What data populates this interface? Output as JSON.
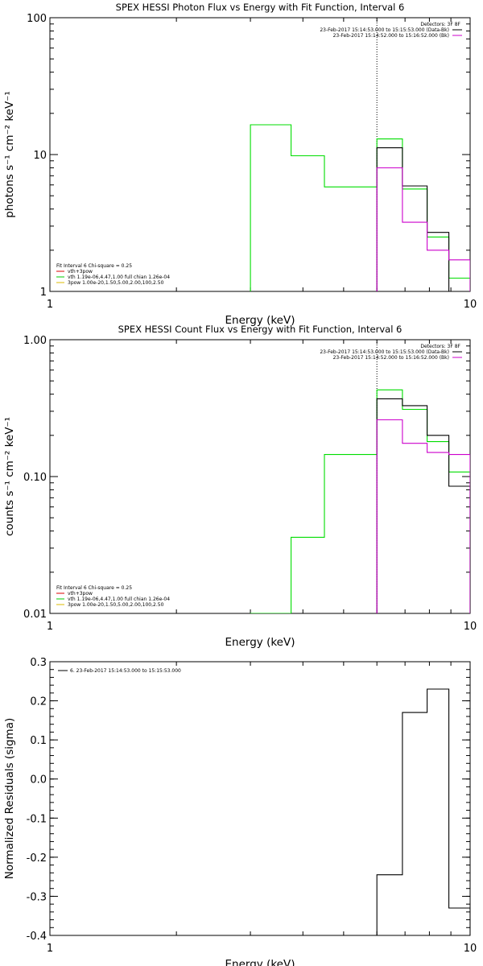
{
  "chart_data": [
    {
      "type": "line",
      "title": "SPEX HESSI Photon Flux vs Energy with Fit Function, Interval 6",
      "xlabel": "Energy (keV)",
      "ylabel": "photons s⁻¹ cm⁻² keV⁻¹",
      "xscale": "log",
      "yscale": "log",
      "xlim": [
        1,
        10
      ],
      "ylim": [
        1,
        100
      ],
      "xticks": [
        {
          "value": 1,
          "label": "1"
        },
        {
          "value": 10,
          "label": "10"
        }
      ],
      "yticks": [
        {
          "value": 1,
          "label": "1"
        },
        {
          "value": 10,
          "label": "10"
        },
        {
          "value": 100,
          "label": "100"
        }
      ],
      "vline": 6.0,
      "legend_top": {
        "header": "Detectors: 3F 8F",
        "entries": [
          {
            "text": "23-Feb-2017 15:14:53.000 to 15:15:53.000 (Data-Bk)",
            "color": "#000000"
          },
          {
            "text": "23-Feb-2017 15:14:52.000 to 15:16:52.000 (Bk)",
            "color": "#cc00cc"
          }
        ]
      },
      "legend_bottom": {
        "header": "Fit Interval 6   Chi-square = 0.25",
        "entries": [
          {
            "text": "vth+3pow",
            "color": "#dd0000"
          },
          {
            "text": "vth 1.19e-06,4.47,1.00  full chian 1.26e-04",
            "color": "#00cc00"
          },
          {
            "text": "3pow 1.00e-20,1.50,5.00,2.00,100,2.50",
            "color": "#ddbb00"
          }
        ]
      },
      "series": [
        {
          "color": "#00dd00",
          "bins": [
            [
              3.0,
              3.75,
              16.5
            ],
            [
              3.75,
              4.5,
              9.8
            ],
            [
              4.5,
              5.2,
              5.8
            ],
            [
              5.2,
              6.0,
              5.8
            ],
            [
              6.0,
              6.9,
              13.0
            ],
            [
              6.9,
              7.9,
              5.6
            ],
            [
              7.9,
              8.9,
              2.5
            ],
            [
              8.9,
              10.0,
              1.25
            ]
          ]
        },
        {
          "color": "#000000",
          "bins": [
            [
              6.0,
              6.9,
              11.2
            ],
            [
              6.9,
              7.9,
              5.9
            ],
            [
              7.9,
              8.9,
              2.7
            ],
            [
              8.9,
              10.0,
              1.0
            ]
          ]
        },
        {
          "color": "#cc00cc",
          "bins": [
            [
              6.0,
              6.9,
              8.0
            ],
            [
              6.9,
              7.9,
              3.2
            ],
            [
              7.9,
              8.9,
              2.0
            ],
            [
              8.9,
              10.0,
              1.7
            ]
          ]
        }
      ]
    },
    {
      "type": "line",
      "title": "SPEX HESSI Count Flux vs Energy with Fit Function, Interval 6",
      "xlabel": "Energy (keV)",
      "ylabel": "counts s⁻¹ cm⁻² keV⁻¹",
      "xscale": "log",
      "yscale": "log",
      "xlim": [
        1,
        10
      ],
      "ylim": [
        0.01,
        1.0
      ],
      "xticks": [
        {
          "value": 1,
          "label": "1"
        },
        {
          "value": 10,
          "label": "10"
        }
      ],
      "yticks": [
        {
          "value": 0.01,
          "label": "0.01"
        },
        {
          "value": 0.1,
          "label": "0.10"
        },
        {
          "value": 1.0,
          "label": "1.00"
        }
      ],
      "vline": 6.0,
      "legend_top": {
        "header": "Detectors: 3F 8F",
        "entries": [
          {
            "text": "23-Feb-2017 15:14:53.000 to 15:15:53.000 (Data-Bk)",
            "color": "#000000"
          },
          {
            "text": "23-Feb-2017 15:14:52.000 to 15:16:52.000 (Bk)",
            "color": "#cc00cc"
          }
        ]
      },
      "legend_bottom": {
        "header": "Fit Interval 6   Chi-square = 0.25",
        "entries": [
          {
            "text": "vth+3pow",
            "color": "#dd0000"
          },
          {
            "text": "vth 1.19e-06,4.47,1.00  full chian 1.26e-04",
            "color": "#00cc00"
          },
          {
            "text": "3pow 1.00e-20,1.50,5.00,2.00,100,2.50",
            "color": "#ddbb00"
          }
        ]
      },
      "series": [
        {
          "color": "#00dd00",
          "bins": [
            [
              3.0,
              3.75,
              0.01
            ],
            [
              3.75,
              4.5,
              0.036
            ],
            [
              4.5,
              5.2,
              0.145
            ],
            [
              5.2,
              6.0,
              0.145
            ],
            [
              6.0,
              6.9,
              0.43
            ],
            [
              6.9,
              7.9,
              0.31
            ],
            [
              7.9,
              8.9,
              0.18
            ],
            [
              8.9,
              10.0,
              0.108
            ]
          ]
        },
        {
          "color": "#000000",
          "bins": [
            [
              6.0,
              6.9,
              0.37
            ],
            [
              6.9,
              7.9,
              0.33
            ],
            [
              7.9,
              8.9,
              0.2
            ],
            [
              8.9,
              10.0,
              0.085
            ]
          ]
        },
        {
          "color": "#cc00cc",
          "bins": [
            [
              6.0,
              6.9,
              0.26
            ],
            [
              6.9,
              7.9,
              0.175
            ],
            [
              7.9,
              8.9,
              0.15
            ],
            [
              8.9,
              10.0,
              0.145
            ]
          ]
        }
      ]
    },
    {
      "type": "line",
      "title": "",
      "xlabel": "Energy (keV)",
      "ylabel": "Normalized Residuals (sigma)",
      "xscale": "log",
      "yscale": "linear",
      "xlim": [
        1,
        10
      ],
      "ylim": [
        -0.4,
        0.3
      ],
      "xticks": [
        {
          "value": 1,
          "label": "1"
        },
        {
          "value": 10,
          "label": "10"
        }
      ],
      "yticks": [
        {
          "value": -0.4,
          "label": "-0.4"
        },
        {
          "value": -0.3,
          "label": "-0.3"
        },
        {
          "value": -0.2,
          "label": "-0.2"
        },
        {
          "value": -0.1,
          "label": "-0.1"
        },
        {
          "value": 0.0,
          "label": "0.0"
        },
        {
          "value": 0.1,
          "label": "0.1"
        },
        {
          "value": 0.2,
          "label": "0.2"
        },
        {
          "value": 0.3,
          "label": "0.3"
        }
      ],
      "legend_top": {
        "header": "",
        "entries": [
          {
            "text": "6. 23-Feb-2017 15:14:53.000 to 15:15:53.000",
            "color": "#000000"
          }
        ]
      },
      "series": [
        {
          "color": "#000000",
          "bins": [
            [
              6.0,
              6.9,
              -0.245
            ],
            [
              6.9,
              7.9,
              0.17
            ],
            [
              7.9,
              8.9,
              0.23
            ],
            [
              8.9,
              10.0,
              -0.33
            ]
          ]
        }
      ]
    }
  ]
}
